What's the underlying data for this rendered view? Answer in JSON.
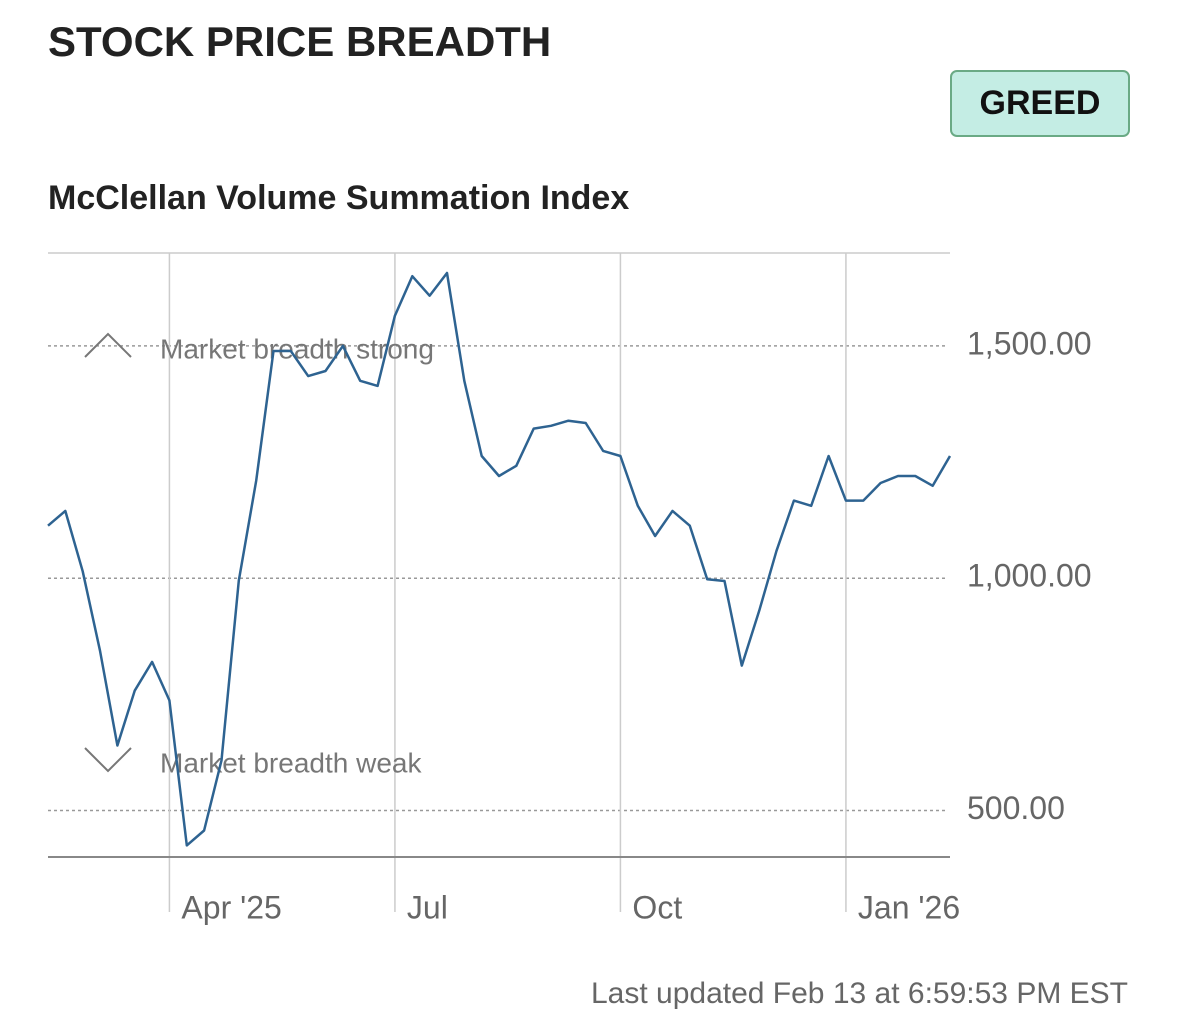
{
  "chart_data": {
    "type": "line",
    "title": "STOCK PRICE BREADTH",
    "badge": "GREED",
    "subtitle": "McClellan Volume Summation Index",
    "annotations": [
      "Market breadth strong",
      "Market breadth weak"
    ],
    "footer": "Last updated Feb 13 at 6:59:53 PM EST",
    "color": "#2e6391",
    "categories": [
      null,
      null,
      null,
      null,
      null,
      null,
      null,
      "Apr '25",
      null,
      null,
      null,
      null,
      null,
      null,
      null,
      null,
      null,
      null,
      null,
      null,
      "Jul",
      null,
      null,
      null,
      null,
      null,
      null,
      null,
      null,
      null,
      null,
      null,
      null,
      "Oct",
      null,
      null,
      null,
      null,
      null,
      null,
      null,
      null,
      null,
      null,
      null,
      null,
      "Jan '26",
      null,
      null,
      null,
      null,
      null,
      null
    ],
    "values": [
      1113,
      1145,
      1015,
      844,
      640,
      758,
      820,
      737,
      425,
      457,
      608,
      995,
      1210,
      1489,
      1489,
      1435,
      1446,
      1500,
      1425,
      1414,
      1565,
      1650,
      1608,
      1657,
      1425,
      1263,
      1220,
      1242,
      1322,
      1328,
      1339,
      1334,
      1274,
      1263,
      1156,
      1091,
      1145,
      1113,
      998,
      994,
      812,
      930,
      1059,
      1167,
      1156,
      1263,
      1167,
      1167,
      1205,
      1220,
      1220,
      1199,
      1263
    ],
    "ylim": [
      400,
      1700
    ],
    "yticks": [
      {
        "value": 500,
        "label": "500.00"
      },
      {
        "value": 1000,
        "label": "1,000.00"
      },
      {
        "value": 1500,
        "label": "1,500.00"
      }
    ],
    "grid": true
  }
}
